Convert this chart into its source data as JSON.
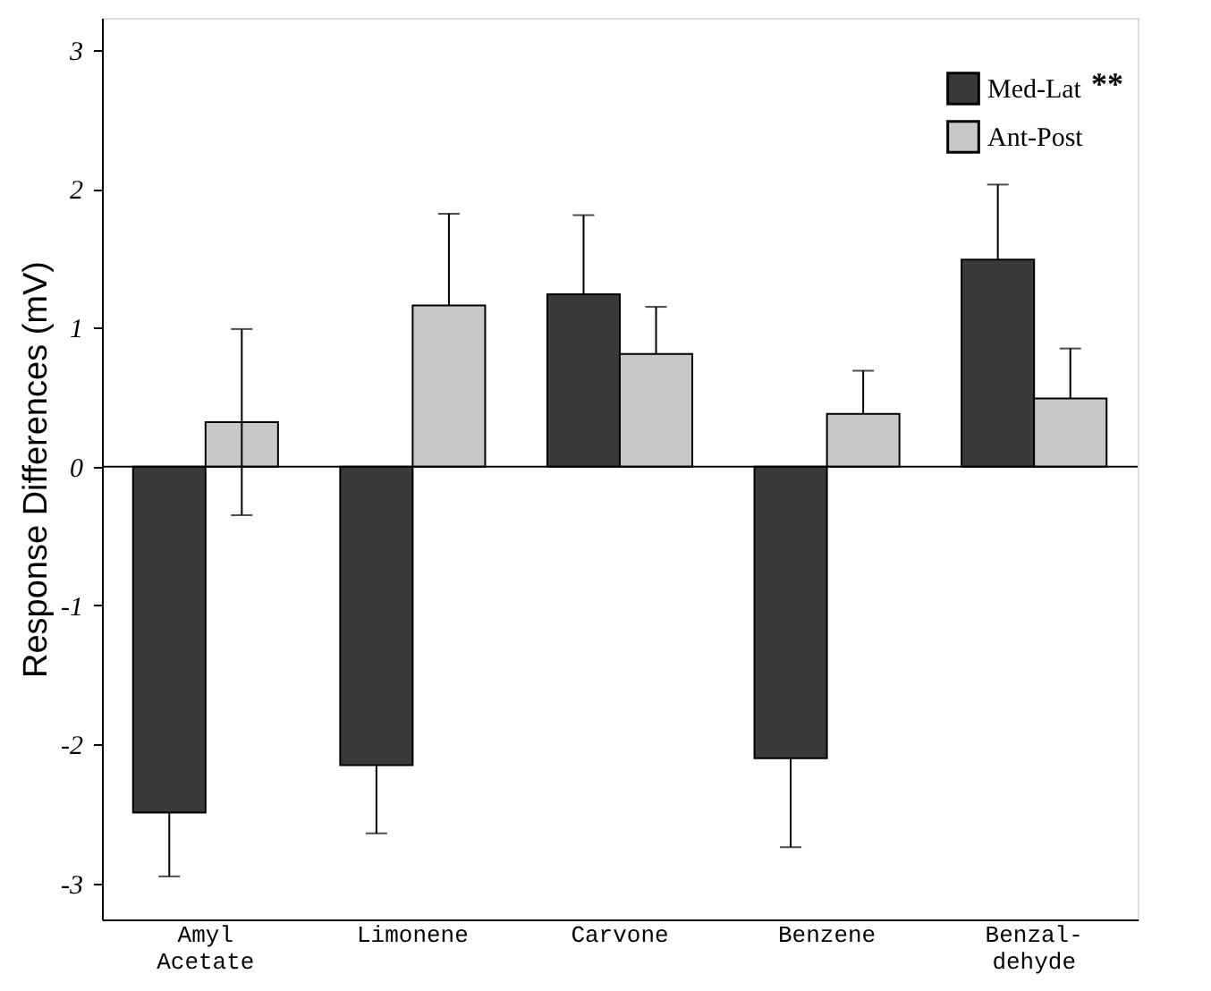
{
  "chart_data": {
    "type": "bar",
    "ylabel": "Response Differences (mV)",
    "categories": [
      "Amyl\nAcetate",
      "Limonene",
      "Carvone",
      "Benzene",
      "Benzal-\ndehyde"
    ],
    "series": [
      {
        "name": "Med-Lat",
        "color": "#3a3a3a",
        "values": [
          -2.49,
          -2.15,
          1.24,
          -2.1,
          1.49
        ],
        "errors": [
          [
            -2.95,
            -2.49
          ],
          [
            -2.64,
            -2.15
          ],
          [
            1.24,
            1.81
          ],
          [
            -2.74,
            -2.1
          ],
          [
            1.49,
            2.03
          ]
        ]
      },
      {
        "name": "Ant-Post",
        "color": "#c8c8c8",
        "values": [
          0.32,
          1.16,
          0.81,
          0.38,
          0.49
        ],
        "errors": [
          [
            -0.35,
            0.99
          ],
          [
            1.16,
            1.82
          ],
          [
            0.81,
            1.15
          ],
          [
            0.38,
            0.69
          ],
          [
            0.49,
            0.85
          ]
        ]
      }
    ],
    "ylim": [
      -3.26,
      3.23
    ],
    "yticks": [
      -3,
      -2,
      -1,
      0,
      1,
      2,
      3
    ],
    "ref_lines": [
      {
        "axis": "y",
        "value": 0
      }
    ],
    "annotations": [
      "**"
    ],
    "legend": "top right",
    "grid": false
  }
}
